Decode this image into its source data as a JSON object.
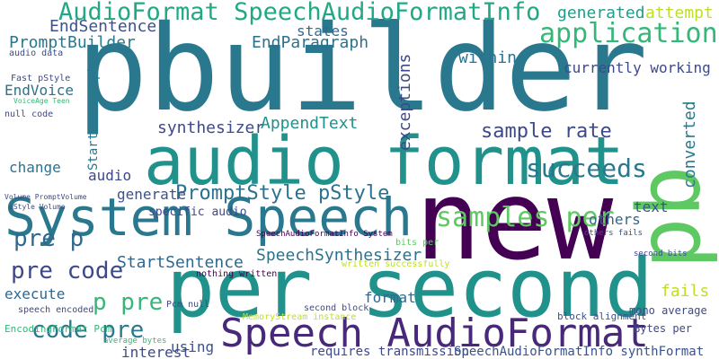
{
  "words": [
    "pbuilder",
    "audio format",
    "new",
    "System Speech",
    "per second",
    "pb",
    "Speech AudioFormat",
    "AudioFormat SpeechAudioFormatInfo",
    "application",
    "samples per",
    "succeeds",
    "pre p",
    "pre code",
    "code pre",
    "PromptStyle pStyle",
    "sample rate",
    "p pre",
    "StartSentence",
    "SpeechSynthesizer",
    "synthesizer",
    "AppendText",
    "EndSentence",
    "PromptBuilder",
    "EndParagraph",
    "states",
    "within",
    "generated",
    "attempt",
    "currently working",
    "converted",
    "text",
    "others",
    "exceptions",
    "fails",
    "format",
    "execute",
    "change",
    "audio",
    "generate",
    "interest",
    "using",
    "requires transmission",
    "SpeechAudioFormatInfo synthFormat",
    "EndVoice",
    "mono average",
    "Bytes per",
    "second bits",
    "block alignment",
    "EncodingFormat Pcm",
    "average bytes",
    "null code",
    "Pcm null",
    "second block",
    "written successfully",
    "bits per",
    "SpeechAudioFormatInfo System",
    "MemoryStream instance",
    "speech encoded",
    "audio data",
    "Volume PromptVolume",
    "pStyle Volume",
    "Fast pStyle",
    "VoiceAge Teen",
    "nothing written",
    "specific audio",
    "StartParagraph",
    "others fails"
  ]
}
